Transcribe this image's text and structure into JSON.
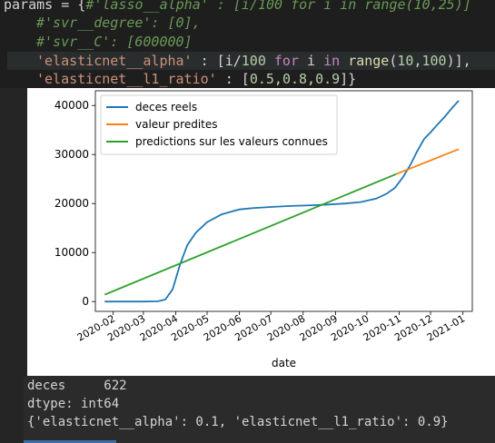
{
  "code": {
    "line1": [
      "params = {",
      "#'lasso__alpha' : [i/100 for i in range(10,25)]"
    ],
    "line2": "#'svr__degree': [0],",
    "line3": "#'svr__C': [600000]",
    "line4": [
      "'elasticnet__alpha'",
      " : [i/",
      "100",
      " ",
      "for",
      " i ",
      "in",
      " ",
      "range",
      "(",
      "10",
      ",",
      "100",
      ")],"
    ],
    "line5": [
      "'elasticnet__l1_ratio'",
      " : [",
      "0.5",
      ",",
      "0.8",
      ",",
      "0.9",
      "]}"
    ]
  },
  "output": {
    "line1": "deces     622",
    "line2": "dtype: int64",
    "line3": "{'elasticnet__alpha': 0.1, 'elasticnet__l1_ratio': 0.9}"
  },
  "colors": {
    "real": "#1f77b4",
    "pred": "#ff7f0e",
    "known": "#2ca02c"
  },
  "chart_data": {
    "type": "line",
    "xlabel": "date",
    "ylabel": "",
    "xlim": [
      "2020-01-15",
      "2021-01-10"
    ],
    "ylim": [
      -2000,
      43000
    ],
    "x_ticks": [
      "2020-02",
      "2020-03",
      "2020-04",
      "2020-05",
      "2020-06",
      "2020-07",
      "2020-08",
      "2020-09",
      "2020-10",
      "2020-11",
      "2020-12",
      "2021-01"
    ],
    "y_ticks": [
      0,
      10000,
      20000,
      30000,
      40000
    ],
    "legend_position": "top-left",
    "grid": false,
    "series": [
      {
        "name": "deces reels",
        "color": "#1f77b4",
        "points": [
          [
            "2020-01-24",
            0
          ],
          [
            "2020-03-01",
            0
          ],
          [
            "2020-03-15",
            60
          ],
          [
            "2020-03-22",
            400
          ],
          [
            "2020-03-29",
            2500
          ],
          [
            "2020-04-05",
            7500
          ],
          [
            "2020-04-12",
            11500
          ],
          [
            "2020-04-20",
            14000
          ],
          [
            "2020-05-01",
            16200
          ],
          [
            "2020-05-15",
            17800
          ],
          [
            "2020-06-01",
            18800
          ],
          [
            "2020-06-15",
            19100
          ],
          [
            "2020-07-01",
            19300
          ],
          [
            "2020-07-20",
            19500
          ],
          [
            "2020-08-10",
            19650
          ],
          [
            "2020-08-25",
            19800
          ],
          [
            "2020-09-10",
            20000
          ],
          [
            "2020-09-25",
            20300
          ],
          [
            "2020-10-10",
            21000
          ],
          [
            "2020-10-20",
            22000
          ],
          [
            "2020-10-28",
            23200
          ],
          [
            "2020-11-05",
            25500
          ],
          [
            "2020-11-12",
            28000
          ],
          [
            "2020-11-18",
            30600
          ],
          [
            "2020-11-25",
            33200
          ],
          [
            "2020-12-01",
            34500
          ],
          [
            "2020-12-08",
            36200
          ],
          [
            "2020-12-15",
            37800
          ],
          [
            "2020-12-22",
            39600
          ],
          [
            "2020-12-28",
            41000
          ]
        ]
      },
      {
        "name": "valeur predites",
        "color": "#ff7f0e",
        "points": [
          [
            "2020-10-29",
            26000
          ],
          [
            "2020-12-28",
            31100
          ]
        ]
      },
      {
        "name": "predictions sur les valeurs connues",
        "color": "#2ca02c",
        "points": [
          [
            "2020-01-24",
            1400
          ],
          [
            "2020-10-29",
            26000
          ]
        ]
      }
    ]
  }
}
